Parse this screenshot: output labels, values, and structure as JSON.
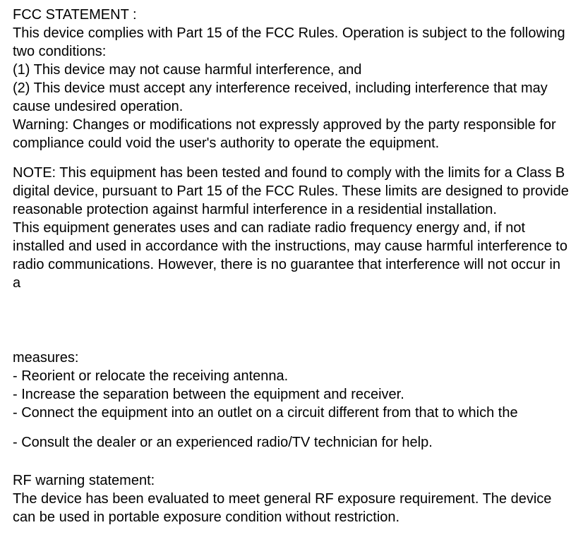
{
  "doc": {
    "font_family": "Arial, Helvetica, sans-serif",
    "font_size_pt": 15,
    "text_color": "#000000",
    "background_color": "#ffffff",
    "p1_l1": "FCC STATEMENT :",
    "p1_l2": "This device complies with Part 15 of the FCC Rules. Operation is subject to the following two conditions:",
    "p1_l3": "(1) This device may not cause harmful interference, and",
    "p1_l4": "(2) This device must accept any interference received, including interference that may cause undesired operation.",
    "p1_l5": "Warning: Changes or modifications not expressly approved by the party responsible for compliance could void the user's authority to operate the equipment.",
    "p2_l1": "NOTE: This equipment has been tested and found to comply with the limits for a Class B digital device, pursuant to Part 15 of the FCC Rules. These limits are designed to provide reasonable protection against harmful interference in a residential installation.",
    "p2_l2": "This equipment generates uses and can radiate radio frequency energy and, if not installed and used in accordance with the instructions, may cause harmful interference to radio communications. However, there is no guarantee that interference will not occur in a",
    "p3_l1": "measures:",
    "p3_l2": "- Reorient or relocate the receiving antenna.",
    "p3_l3": "- Increase the separation between the equipment and receiver.",
    "p3_l4": "- Connect the equipment into an outlet on a circuit different from that to which the",
    "p3_l5": "- Consult the dealer or an experienced radio/TV technician for help.",
    "p4_l1": "RF warning statement:",
    "p4_l2": "The device has been evaluated to meet general RF exposure requirement. The device can be used in portable exposure condition without restriction."
  }
}
